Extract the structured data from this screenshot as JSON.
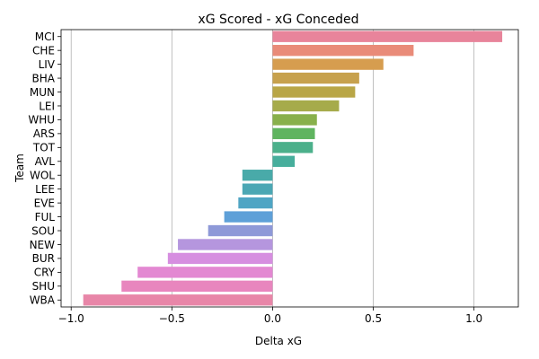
{
  "chart_data": {
    "type": "bar",
    "orientation": "horizontal",
    "title": "xG Scored - xG Conceded",
    "xlabel": "Delta xG",
    "ylabel": "Team",
    "xlim": [
      -1.05,
      1.22
    ],
    "xticks": [
      -1.0,
      -0.5,
      0.0,
      0.5,
      1.0
    ],
    "xtick_labels": [
      "−1.0",
      "−0.5",
      "0.0",
      "0.5",
      "1.0"
    ],
    "grid": "vertical",
    "categories": [
      "MCI",
      "CHE",
      "LIV",
      "BHA",
      "MUN",
      "LEI",
      "WHU",
      "ARS",
      "TOT",
      "AVL",
      "WOL",
      "LEE",
      "EVE",
      "FUL",
      "SOU",
      "NEW",
      "BUR",
      "CRY",
      "SHU",
      "WBA"
    ],
    "values": [
      1.14,
      0.7,
      0.55,
      0.43,
      0.41,
      0.33,
      0.22,
      0.21,
      0.2,
      0.11,
      -0.15,
      -0.15,
      -0.17,
      -0.24,
      -0.32,
      -0.47,
      -0.52,
      -0.67,
      -0.75,
      -0.94
    ],
    "colors": [
      "#e8849b",
      "#e98b79",
      "#d69d4f",
      "#c7a14d",
      "#b9a646",
      "#a6ab4b",
      "#88b04b",
      "#5fb45f",
      "#4cb08b",
      "#47ae9c",
      "#49aaa9",
      "#4ba7b4",
      "#4fa5c4",
      "#5ea0d8",
      "#8e99d8",
      "#b596de",
      "#d68ee0",
      "#e388d2",
      "#e886be",
      "#e886a8"
    ]
  }
}
